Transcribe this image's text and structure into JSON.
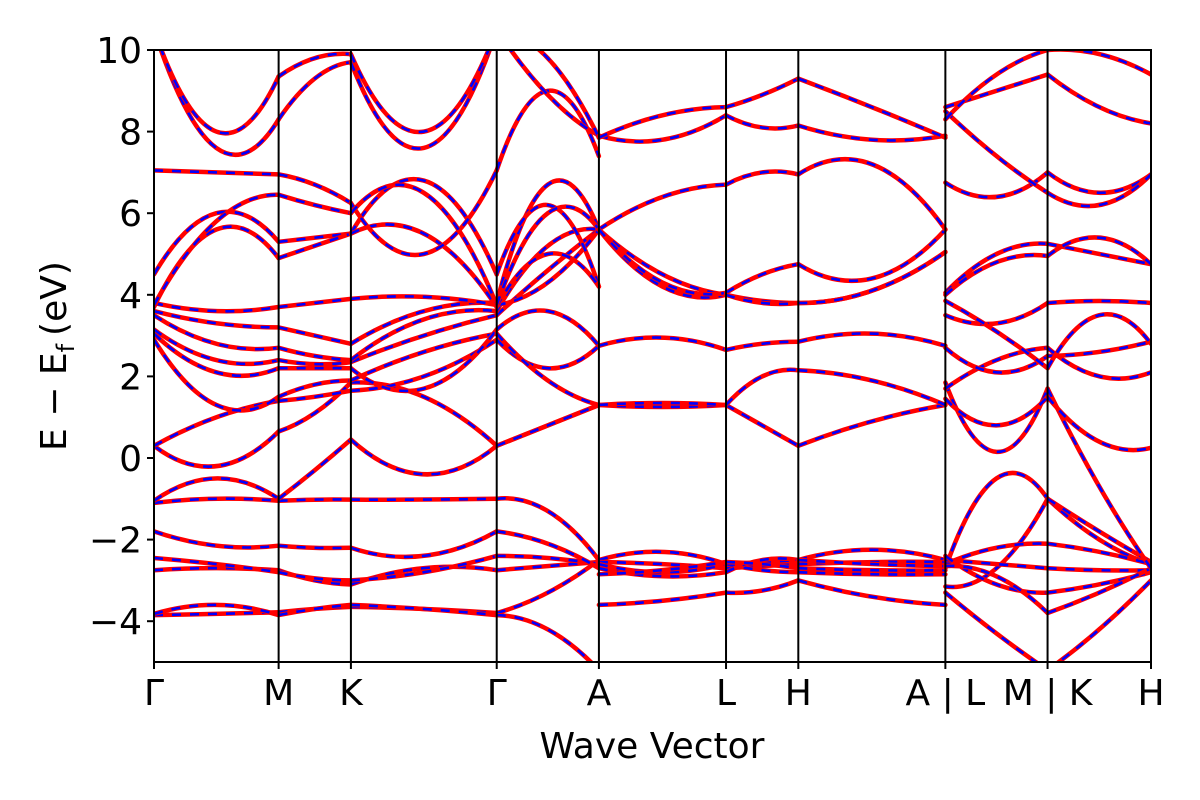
{
  "chart_data": {
    "type": "line",
    "title": "",
    "xlabel": "Wave Vector",
    "ylabel": "E − E",
    "ylabel_sub": "f",
    "ylabel_unit": "(eV)",
    "ylim": [
      -5,
      10
    ],
    "xlim": [
      0,
      8.0
    ],
    "yticks": [
      -4,
      -2,
      0,
      2,
      4,
      6,
      8,
      10
    ],
    "ytick_labels": [
      "−4",
      "−2",
      "0",
      "2",
      "4",
      "6",
      "8",
      "10"
    ],
    "grid": false,
    "legend": "none",
    "kpoints": [
      {
        "label": "Γ",
        "x": 0.0
      },
      {
        "label": "M",
        "x": 1.0
      },
      {
        "label": "K",
        "x": 1.58
      },
      {
        "label": "Γ",
        "x": 2.75
      },
      {
        "label": "A",
        "x": 3.57
      },
      {
        "label": "L",
        "x": 4.59
      },
      {
        "label": "H",
        "x": 5.17
      },
      {
        "label": "A | L",
        "x": 6.35
      },
      {
        "label": "M | K",
        "x": 7.17
      },
      {
        "label": "H",
        "x": 8.0
      }
    ],
    "colors": {
      "series_a": "#ff0000",
      "series_b": "#0000ff"
    },
    "segments": [
      {
        "x0": 0.0,
        "x1": 1.0,
        "bands": [
          [
            -3.85,
            -3.82,
            -3.78
          ],
          [
            -3.82,
            -3.6,
            -3.85
          ],
          [
            -2.75,
            -2.7,
            -2.75
          ],
          [
            -2.45,
            -2.6,
            -2.8
          ],
          [
            -1.8,
            -2.15,
            -2.15
          ],
          [
            -1.1,
            -1.0,
            -1.05
          ],
          [
            -1.05,
            -0.5,
            -1.0
          ],
          [
            0.3,
            -0.2,
            0.65
          ],
          [
            0.3,
            1.0,
            1.4
          ],
          [
            2.9,
            1.3,
            1.5
          ],
          [
            3.05,
            2.1,
            2.2
          ],
          [
            3.15,
            2.4,
            2.4
          ],
          [
            3.5,
            2.8,
            2.7
          ],
          [
            3.6,
            3.3,
            3.2
          ],
          [
            3.8,
            3.6,
            3.7
          ],
          [
            4.5,
            6.0,
            5.3
          ],
          [
            3.7,
            5.6,
            4.9
          ],
          [
            7.05,
            7.0,
            6.95
          ],
          [
            3.75,
            5.8,
            6.45
          ],
          [
            10.5,
            7.6,
            8.3
          ],
          [
            10.5,
            8.0,
            9.35
          ]
        ]
      },
      {
        "x0": 1.0,
        "x1": 1.58,
        "bands": [
          [
            -3.78,
            -3.7,
            -3.65
          ],
          [
            -3.85,
            -3.7,
            -3.6
          ],
          [
            -2.75,
            -3.0,
            -3.1
          ],
          [
            -2.8,
            -2.95,
            -3.0
          ],
          [
            -2.15,
            -2.2,
            -2.2
          ],
          [
            -1.05,
            -1.02,
            -1.02
          ],
          [
            -1.0,
            -0.3,
            0.45
          ],
          [
            0.65,
            1.1,
            1.85
          ],
          [
            1.4,
            1.5,
            1.65
          ],
          [
            1.5,
            1.8,
            1.9
          ],
          [
            2.2,
            2.2,
            2.2
          ],
          [
            2.4,
            2.3,
            2.35
          ],
          [
            2.7,
            2.5,
            2.4
          ],
          [
            3.2,
            3.0,
            2.8
          ],
          [
            3.7,
            3.8,
            3.9
          ],
          [
            5.3,
            5.4,
            5.5
          ],
          [
            4.9,
            5.2,
            5.5
          ],
          [
            6.95,
            6.7,
            6.25
          ],
          [
            6.45,
            6.2,
            6.0
          ],
          [
            8.3,
            9.3,
            9.7
          ],
          [
            9.35,
            9.8,
            9.9
          ]
        ]
      },
      {
        "x0": 1.58,
        "x1": 2.75,
        "bands": [
          [
            -3.65,
            -3.7,
            -3.8
          ],
          [
            -3.6,
            -3.7,
            -3.85
          ],
          [
            -3.1,
            -2.7,
            -2.75
          ],
          [
            -3.0,
            -2.8,
            -2.4
          ],
          [
            -2.2,
            -2.4,
            -1.8
          ],
          [
            -1.02,
            -1.02,
            -1.0
          ],
          [
            0.45,
            -0.4,
            0.3
          ],
          [
            1.85,
            1.5,
            0.3
          ],
          [
            1.65,
            2.0,
            2.9
          ],
          [
            1.9,
            2.6,
            3.05
          ],
          [
            2.2,
            1.7,
            3.15
          ],
          [
            2.35,
            3.0,
            3.5
          ],
          [
            2.4,
            3.4,
            3.6
          ],
          [
            2.8,
            3.6,
            3.8
          ],
          [
            3.9,
            3.95,
            3.75
          ],
          [
            5.5,
            6.8,
            4.5
          ],
          [
            5.5,
            5.5,
            3.7
          ],
          [
            6.25,
            5.0,
            7.05
          ],
          [
            6.0,
            6.5,
            3.75
          ],
          [
            9.7,
            7.6,
            10.5
          ],
          [
            9.9,
            8.0,
            10.5
          ]
        ]
      },
      {
        "x0": 2.75,
        "x1": 3.57,
        "bands": [
          [
            -3.8,
            -3.3,
            -2.5
          ],
          [
            -3.85,
            -4.2,
            -5.2
          ],
          [
            -2.75,
            -2.65,
            -2.55
          ],
          [
            -2.4,
            -2.45,
            -2.6
          ],
          [
            -1.8,
            -2.1,
            -2.7
          ],
          [
            -1.0,
            -1.3,
            -2.5
          ],
          [
            0.3,
            0.8,
            1.3
          ],
          [
            0.3,
            0.8,
            1.3
          ],
          [
            2.9,
            2.2,
            2.75
          ],
          [
            3.05,
            1.9,
            1.3
          ],
          [
            3.15,
            3.6,
            2.75
          ],
          [
            3.5,
            4.6,
            5.6
          ],
          [
            3.6,
            5.2,
            5.6
          ],
          [
            3.8,
            6.7,
            5.6
          ],
          [
            3.75,
            4.3,
            5.6
          ],
          [
            4.5,
            6.2,
            4.2
          ],
          [
            3.7,
            5.0,
            4.2
          ],
          [
            7.05,
            9.0,
            7.4
          ],
          [
            10.5,
            8.9,
            7.9
          ],
          [
            10.5,
            9.8,
            7.85
          ],
          [
            3.75,
            6.0,
            5.6
          ]
        ]
      },
      {
        "x0": 3.57,
        "x1": 4.59,
        "bands": [
          [
            -3.6,
            -3.5,
            -3.3
          ],
          [
            -2.5,
            -2.3,
            -2.6
          ],
          [
            -2.55,
            -2.6,
            -2.7
          ],
          [
            -2.6,
            -2.8,
            -2.6
          ],
          [
            -2.7,
            -2.9,
            -2.8
          ],
          [
            -2.85,
            -2.75,
            -2.55
          ],
          [
            1.3,
            1.25,
            1.3
          ],
          [
            1.3,
            1.35,
            1.3
          ],
          [
            2.75,
            2.95,
            2.65
          ],
          [
            5.6,
            4.2,
            4.0
          ],
          [
            5.6,
            4.5,
            4.0
          ],
          [
            5.6,
            6.4,
            6.7
          ],
          [
            7.9,
            7.8,
            8.4
          ],
          [
            7.85,
            8.4,
            8.6
          ],
          [
            5.6,
            4.3,
            4.05
          ]
        ]
      },
      {
        "x0": 4.59,
        "x1": 5.17,
        "bands": [
          [
            -3.3,
            -3.25,
            -3.0
          ],
          [
            -2.6,
            -2.55,
            -2.5
          ],
          [
            -2.7,
            -2.65,
            -2.6
          ],
          [
            -2.6,
            -2.75,
            -2.8
          ],
          [
            -2.8,
            -2.5,
            -2.5
          ],
          [
            -2.55,
            -2.6,
            -2.7
          ],
          [
            1.3,
            0.8,
            0.3
          ],
          [
            1.3,
            2.0,
            2.15
          ],
          [
            2.65,
            2.8,
            2.85
          ],
          [
            4.0,
            3.85,
            3.8
          ],
          [
            4.05,
            4.5,
            4.75
          ],
          [
            6.7,
            7.0,
            6.95
          ],
          [
            8.4,
            8.1,
            8.15
          ],
          [
            8.6,
            8.9,
            9.3
          ],
          [
            4.0,
            3.8,
            3.8
          ]
        ]
      },
      {
        "x0": 5.17,
        "x1": 6.35,
        "bands": [
          [
            -3.0,
            -3.4,
            -3.6
          ],
          [
            -2.5,
            -2.25,
            -2.5
          ],
          [
            -2.6,
            -2.55,
            -2.55
          ],
          [
            -2.8,
            -2.85,
            -2.85
          ],
          [
            -2.5,
            -2.6,
            -2.65
          ],
          [
            -2.7,
            -2.75,
            -2.75
          ],
          [
            0.3,
            0.9,
            1.3
          ],
          [
            2.15,
            1.9,
            1.3
          ],
          [
            2.85,
            3.05,
            2.75
          ],
          [
            3.8,
            4.1,
            5.05
          ],
          [
            4.75,
            4.4,
            5.6
          ],
          [
            6.95,
            7.2,
            5.6
          ],
          [
            8.15,
            7.8,
            7.9
          ],
          [
            9.3,
            8.6,
            7.85
          ],
          [
            3.8,
            4.1,
            5.05
          ]
        ]
      },
      {
        "x0": 6.35,
        "x1": 7.17,
        "bands": [
          [
            -3.3,
            -4.3,
            -5.2
          ],
          [
            -3.15,
            -2.7,
            -1.0
          ],
          [
            -2.7,
            -0.5,
            -1.0
          ],
          [
            -2.6,
            -2.2,
            -2.1
          ],
          [
            -2.5,
            -2.6,
            -2.7
          ],
          [
            -2.4,
            -3.1,
            -3.3
          ],
          [
            -2.65,
            -2.9,
            -3.8
          ],
          [
            1.85,
            0.15,
            1.7
          ],
          [
            1.45,
            0.8,
            1.5
          ],
          [
            1.7,
            2.4,
            2.7
          ],
          [
            2.7,
            2.1,
            2.5
          ],
          [
            3.5,
            3.3,
            3.8
          ],
          [
            4.05,
            5.0,
            5.25
          ],
          [
            4.0,
            4.8,
            4.95
          ],
          [
            6.75,
            6.4,
            7.0
          ],
          [
            8.5,
            7.4,
            6.5
          ],
          [
            8.6,
            9.0,
            9.4
          ],
          [
            8.3,
            9.4,
            10.0
          ],
          [
            3.85,
            3.1,
            2.2
          ]
        ]
      },
      {
        "x0": 7.17,
        "x1": 8.0,
        "bands": [
          [
            -5.2,
            -4.2,
            -3.0
          ],
          [
            -1.0,
            -2.0,
            -2.6
          ],
          [
            -1.0,
            -1.8,
            -2.55
          ],
          [
            -2.1,
            -2.3,
            -2.6
          ],
          [
            -2.7,
            -2.75,
            -2.75
          ],
          [
            -3.3,
            -3.1,
            -2.8
          ],
          [
            -3.8,
            -3.3,
            -2.7
          ],
          [
            1.7,
            -0.7,
            -2.7
          ],
          [
            1.5,
            0.4,
            0.25
          ],
          [
            2.7,
            2.0,
            2.1
          ],
          [
            2.5,
            2.6,
            2.85
          ],
          [
            3.8,
            3.85,
            3.8
          ],
          [
            5.25,
            5.0,
            4.75
          ],
          [
            4.95,
            5.4,
            4.75
          ],
          [
            7.0,
            6.5,
            6.95
          ],
          [
            6.5,
            6.2,
            6.95
          ],
          [
            9.4,
            8.6,
            8.2
          ],
          [
            10.0,
            9.9,
            9.4
          ],
          [
            2.2,
            3.5,
            2.8
          ]
        ]
      }
    ]
  }
}
